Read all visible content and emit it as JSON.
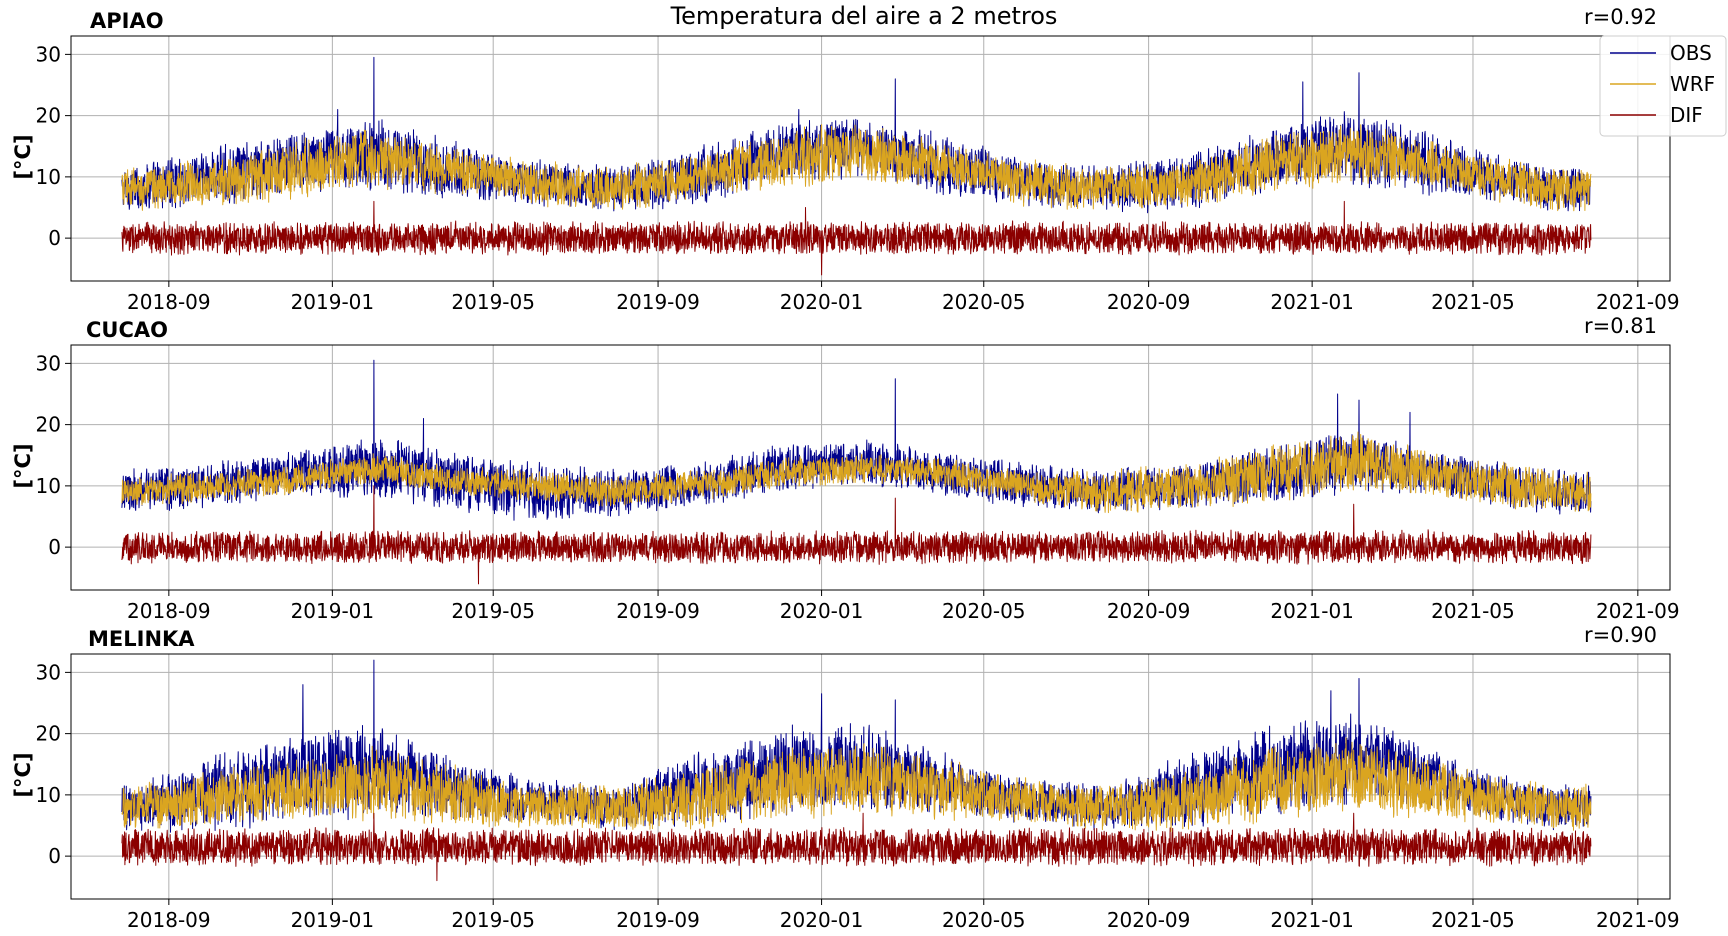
{
  "figure_title": "Temperatura del aire a 2 metros",
  "legend": {
    "position": "top-right",
    "entries": [
      {
        "label": "OBS",
        "color": "#00008b"
      },
      {
        "label": "WRF",
        "color": "#daa520"
      },
      {
        "label": "DIF",
        "color": "#8b0000"
      }
    ]
  },
  "chart_data": [
    {
      "type": "line",
      "station": "APIAO",
      "r_label": "r=0.92",
      "ylabel": "[°C]",
      "xlim": [
        "2018-06-20",
        "2021-09-25"
      ],
      "ylim": [
        -7,
        33
      ],
      "grid": true,
      "x_ticks": [
        "2018-09",
        "2019-01",
        "2019-05",
        "2019-09",
        "2020-01",
        "2020-05",
        "2020-09",
        "2021-01",
        "2021-05",
        "2021-09"
      ],
      "y_ticks": [
        0,
        10,
        20,
        30
      ],
      "data_range": [
        "2018-07-28",
        "2021-07-28"
      ],
      "series": [
        {
          "name": "OBS",
          "color": "#00008b",
          "monthly_envelope": {
            "months": [
              "2018-08",
              "2018-10",
              "2018-12",
              "2019-02",
              "2019-04",
              "2019-06",
              "2019-08",
              "2019-10",
              "2019-12",
              "2020-02",
              "2020-04",
              "2020-06",
              "2020-08",
              "2020-10",
              "2020-12",
              "2021-02",
              "2021-04",
              "2021-06",
              "2021-07"
            ],
            "mean": [
              8,
              10,
              12,
              14,
              11,
              9,
              8,
              10,
              14,
              15,
              12,
              9,
              8,
              9,
              13,
              15,
              12,
              9,
              8
            ],
            "spread": [
              3,
              4,
              4,
              5,
              4,
              3,
              3,
              4,
              4,
              4,
              4,
              3,
              3,
              4,
              4,
              5,
              4,
              3,
              3
            ]
          }
        },
        {
          "name": "WRF",
          "color": "#daa520",
          "monthly_envelope": {
            "months": [
              "2018-08",
              "2018-10",
              "2018-12",
              "2019-02",
              "2019-04",
              "2019-06",
              "2019-08",
              "2019-10",
              "2019-12",
              "2020-02",
              "2020-04",
              "2020-06",
              "2020-08",
              "2020-10",
              "2020-12",
              "2021-02",
              "2021-04",
              "2021-06",
              "2021-07"
            ],
            "mean": [
              8,
              9,
              11,
              13,
              11,
              9,
              8,
              10,
              13,
              14,
              12,
              9,
              8,
              9,
              12,
              14,
              12,
              9,
              8
            ],
            "spread": [
              3,
              3,
              4,
              4,
              3,
              3,
              3,
              3,
              4,
              4,
              3,
              3,
              3,
              3,
              4,
              4,
              3,
              3,
              3
            ]
          }
        },
        {
          "name": "DIF",
          "color": "#8b0000",
          "mean": 0,
          "spread": 2.2,
          "peaks": [
            [
              "2019-02-01",
              6
            ],
            [
              "2019-12-20",
              5
            ],
            [
              "2021-01-25",
              6
            ],
            [
              "2020-01-01",
              -6
            ]
          ]
        }
      ],
      "obs_peaks": [
        [
          "2019-02-01",
          29.5
        ],
        [
          "2019-12-15",
          21
        ],
        [
          "2020-02-25",
          26
        ],
        [
          "2021-02-05",
          27
        ],
        [
          "2020-12-25",
          25.5
        ],
        [
          "2019-01-05",
          21
        ]
      ]
    },
    {
      "type": "line",
      "station": "CUCAO",
      "r_label": "r=0.81",
      "ylabel": "[°C]",
      "xlim": [
        "2018-06-20",
        "2021-09-25"
      ],
      "ylim": [
        -7,
        33
      ],
      "grid": true,
      "x_ticks": [
        "2018-09",
        "2019-01",
        "2019-05",
        "2019-09",
        "2020-01",
        "2020-05",
        "2020-09",
        "2021-01",
        "2021-05",
        "2021-09"
      ],
      "y_ticks": [
        0,
        10,
        20,
        30
      ],
      "data_range": [
        "2018-07-28",
        "2021-07-28"
      ],
      "series": [
        {
          "name": "OBS",
          "color": "#00008b",
          "monthly_envelope": {
            "months": [
              "2018-08",
              "2018-10",
              "2018-12",
              "2019-02",
              "2019-04",
              "2019-06",
              "2019-08",
              "2019-10",
              "2019-12",
              "2020-02",
              "2020-04",
              "2020-06",
              "2020-08",
              "2020-10",
              "2020-12",
              "2021-02",
              "2021-04",
              "2021-06",
              "2021-07"
            ],
            "mean": [
              9,
              10,
              12,
              13,
              11,
              9,
              9,
              10,
              13,
              14,
              12,
              10,
              9,
              10,
              12,
              14,
              12,
              10,
              9
            ],
            "spread": [
              3,
              3,
              3,
              4,
              4,
              4,
              3,
              3,
              3,
              3,
              3,
              3,
              3,
              3,
              4,
              4,
              3,
              3,
              3
            ]
          }
        },
        {
          "name": "WRF",
          "color": "#daa520",
          "monthly_envelope": {
            "months": [
              "2018-08",
              "2018-10",
              "2018-12",
              "2019-02",
              "2019-04",
              "2019-06",
              "2019-08",
              "2019-10",
              "2019-12",
              "2020-02",
              "2020-04",
              "2020-06",
              "2020-08",
              "2020-10",
              "2020-12",
              "2021-02",
              "2021-04",
              "2021-06",
              "2021-07"
            ],
            "mean": [
              9,
              10,
              11,
              13,
              11,
              10,
              9,
              10,
              12,
              13,
              12,
              10,
              9,
              10,
              12,
              14,
              12,
              10,
              9
            ],
            "spread": [
              2,
              2,
              2,
              2,
              2,
              2,
              2,
              2,
              2,
              2,
              2,
              2,
              3,
              3,
              4,
              4,
              3,
              3,
              3
            ]
          }
        },
        {
          "name": "DIF",
          "color": "#8b0000",
          "mean": 0,
          "spread": 2.2,
          "peaks": [
            [
              "2019-02-01",
              10
            ],
            [
              "2020-02-25",
              8
            ],
            [
              "2021-02-01",
              7
            ],
            [
              "2019-04-20",
              -6
            ]
          ]
        }
      ],
      "obs_peaks": [
        [
          "2019-02-01",
          30.5
        ],
        [
          "2020-02-25",
          27.5
        ],
        [
          "2021-01-20",
          25
        ],
        [
          "2021-02-05",
          24
        ],
        [
          "2021-03-15",
          22
        ],
        [
          "2019-03-10",
          21
        ]
      ]
    },
    {
      "type": "line",
      "station": "MELINKA",
      "r_label": "r=0.90",
      "ylabel": "[°C]",
      "xlim": [
        "2018-06-20",
        "2021-09-25"
      ],
      "ylim": [
        -7,
        33
      ],
      "grid": true,
      "x_ticks": [
        "2018-09",
        "2019-01",
        "2019-05",
        "2019-09",
        "2020-01",
        "2020-05",
        "2020-09",
        "2021-01",
        "2021-05",
        "2021-09"
      ],
      "y_ticks": [
        0,
        10,
        20,
        30
      ],
      "data_range": [
        "2018-07-28",
        "2021-07-28"
      ],
      "series": [
        {
          "name": "OBS",
          "color": "#00008b",
          "monthly_envelope": {
            "months": [
              "2018-08",
              "2018-10",
              "2018-12",
              "2019-02",
              "2019-04",
              "2019-06",
              "2019-08",
              "2019-10",
              "2019-12",
              "2020-02",
              "2020-04",
              "2020-06",
              "2020-08",
              "2020-10",
              "2020-12",
              "2021-02",
              "2021-04",
              "2021-06",
              "2021-07"
            ],
            "mean": [
              8,
              10,
              13,
              14,
              11,
              9,
              8,
              11,
              14,
              15,
              12,
              9,
              8,
              11,
              14,
              16,
              13,
              9,
              8
            ],
            "spread": [
              3,
              5,
              6,
              6,
              4,
              3,
              3,
              5,
              6,
              6,
              4,
              3,
              3,
              5,
              6,
              6,
              4,
              3,
              3
            ]
          }
        },
        {
          "name": "WRF",
          "color": "#daa520",
          "monthly_envelope": {
            "months": [
              "2018-08",
              "2018-10",
              "2018-12",
              "2019-02",
              "2019-04",
              "2019-06",
              "2019-08",
              "2019-10",
              "2019-12",
              "2020-02",
              "2020-04",
              "2020-06",
              "2020-08",
              "2020-10",
              "2020-12",
              "2021-02",
              "2021-04",
              "2021-06",
              "2021-07"
            ],
            "mean": [
              8,
              9,
              11,
              12,
              10,
              8,
              8,
              9,
              12,
              13,
              11,
              9,
              8,
              9,
              12,
              13,
              11,
              9,
              8
            ],
            "spread": [
              3,
              4,
              4,
              5,
              4,
              3,
              3,
              4,
              5,
              5,
              4,
              3,
              3,
              4,
              5,
              5,
              4,
              3,
              3
            ]
          }
        },
        {
          "name": "DIF",
          "color": "#8b0000",
          "mean": 1.5,
          "spread": 2.5,
          "peaks": [
            [
              "2019-02-01",
              7
            ],
            [
              "2020-02-01",
              7
            ],
            [
              "2021-02-01",
              7
            ],
            [
              "2019-03-20",
              -4
            ]
          ]
        }
      ],
      "obs_peaks": [
        [
          "2019-02-01",
          32
        ],
        [
          "2018-12-10",
          28
        ],
        [
          "2020-01-01",
          26.5
        ],
        [
          "2020-02-25",
          25.5
        ],
        [
          "2021-02-05",
          29
        ],
        [
          "2021-01-15",
          27
        ]
      ]
    }
  ]
}
